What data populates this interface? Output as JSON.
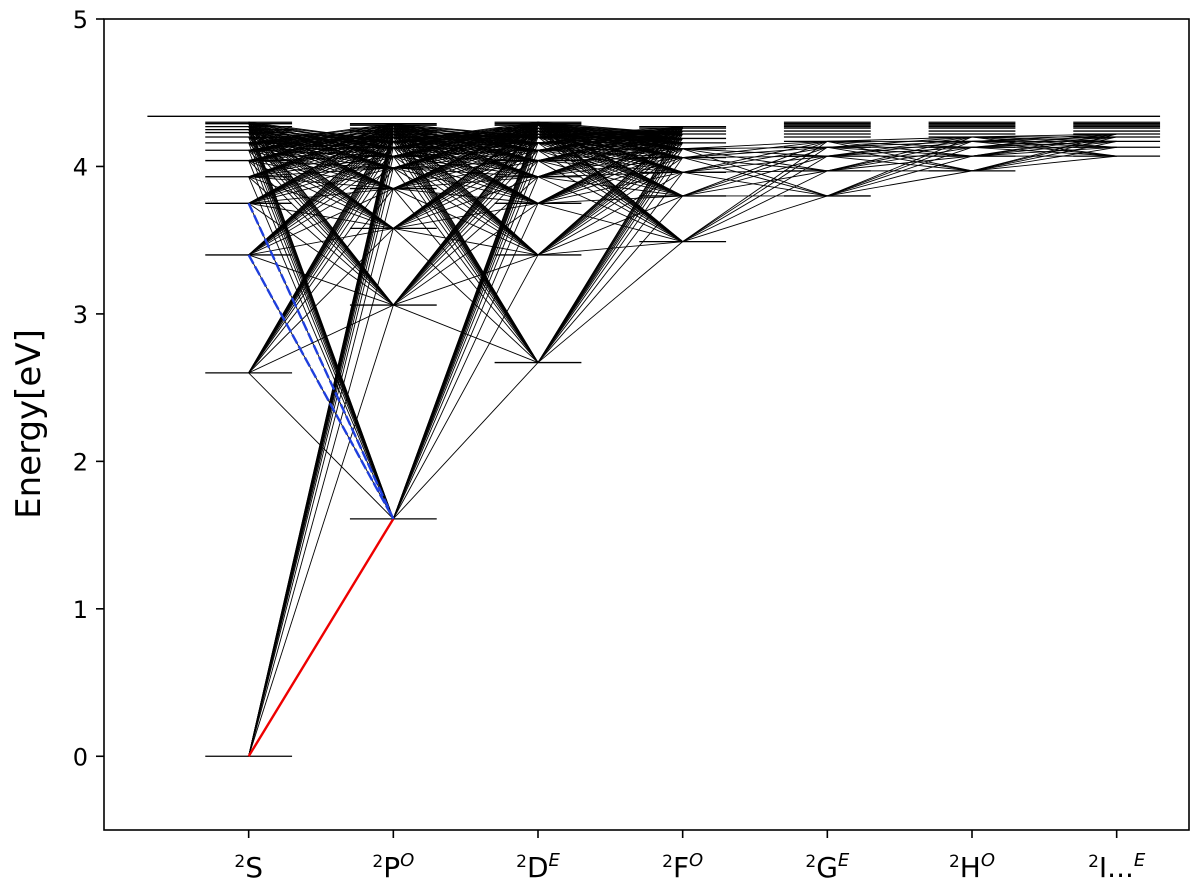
{
  "chart_data": {
    "type": "line",
    "title": "",
    "xlabel": "",
    "ylabel": "Energy[eV]",
    "ylim": [
      -0.5,
      5
    ],
    "xlim": [
      -1,
      6.5
    ],
    "yticks": [
      "0",
      "1",
      "2",
      "3",
      "4",
      "5"
    ],
    "categories": [
      {
        "sup": "2",
        "base": "S",
        "sub_sup": ""
      },
      {
        "sup": "2",
        "base": "P",
        "sub_sup": "O"
      },
      {
        "sup": "2",
        "base": "D",
        "sub_sup": "E"
      },
      {
        "sup": "2",
        "base": "F",
        "sub_sup": "O"
      },
      {
        "sup": "2",
        "base": "G",
        "sub_sup": "E"
      },
      {
        "sup": "2",
        "base": "H",
        "sub_sup": "O"
      },
      {
        "sup": "2",
        "base": "I...",
        "sub_sup": "E"
      }
    ],
    "ionization_limit": 4.34,
    "levels": [
      [
        0,
        2.6,
        3.4,
        3.75,
        3.93,
        4.04,
        4.11,
        4.16,
        4.2,
        4.23,
        4.25,
        4.27,
        4.29,
        4.3
      ],
      [
        1.61,
        3.06,
        3.58,
        3.85,
        3.99,
        4.07,
        4.13,
        4.17,
        4.2,
        4.22,
        4.24,
        4.26,
        4.28,
        4.29
      ],
      [
        2.67,
        3.4,
        3.75,
        3.93,
        4.04,
        4.11,
        4.16,
        4.2,
        4.22,
        4.24,
        4.26,
        4.28,
        4.29,
        4.3
      ],
      [
        3.49,
        3.8,
        3.96,
        4.06,
        4.12,
        4.16,
        4.19,
        4.22,
        4.24,
        4.26,
        4.27
      ],
      [
        3.8,
        3.97,
        4.07,
        4.13,
        4.17,
        4.2,
        4.22,
        4.24,
        4.26,
        4.27,
        4.28,
        4.29,
        4.3
      ],
      [
        3.97,
        4.07,
        4.13,
        4.17,
        4.2,
        4.22,
        4.24,
        4.26,
        4.27,
        4.28,
        4.29,
        4.3
      ],
      [
        4.07,
        4.13,
        4.17,
        4.2,
        4.22,
        4.24,
        4.26,
        4.27,
        4.28,
        4.29,
        4.3
      ]
    ],
    "highlight_transitions": [
      {
        "from": [
          0,
          0
        ],
        "to": [
          1,
          1.61
        ],
        "color": "#ee0000"
      },
      {
        "from": [
          0,
          3.4
        ],
        "to": [
          1,
          1.61
        ],
        "color": "#1f3fdd"
      },
      {
        "from": [
          0,
          3.75
        ],
        "to": [
          1,
          1.61
        ],
        "color": "#1f3fdd"
      }
    ],
    "grid": false,
    "legend": "none"
  }
}
